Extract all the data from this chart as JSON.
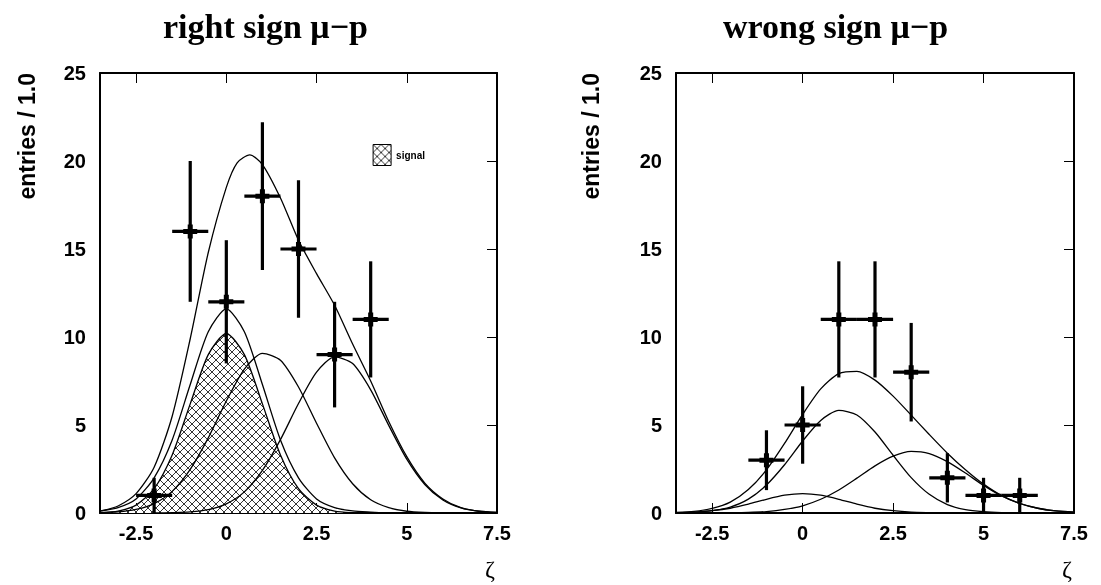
{
  "chart_data": [
    {
      "type": "line",
      "title": "right sign μ−p",
      "xlabel": "ζ",
      "ylabel": "entries / 1.0",
      "xlim": [
        -3.5,
        7.5
      ],
      "xticks": [
        -2.5,
        0,
        2.5,
        5,
        7.5
      ],
      "ylim": [
        0,
        25
      ],
      "yticks": [
        0,
        5,
        10,
        15,
        20,
        25
      ],
      "grid": false,
      "legend": "top right",
      "marker": "none",
      "line_style": "solid",
      "series": [
        {
          "type": "area",
          "name": "signal",
          "color": "#000000",
          "x": [
            -3.5,
            -3,
            -2.5,
            -2,
            -1.5,
            -1,
            -0.5,
            0,
            0.5,
            1,
            1.5,
            2,
            2.5,
            3,
            3.5,
            4
          ],
          "values": [
            0.02,
            0.11,
            0.45,
            1.38,
            3.3,
            6.2,
            9.0,
            10.2,
            9.0,
            6.2,
            3.3,
            1.38,
            0.45,
            0.11,
            0.02,
            0
          ]
        },
        {
          "type": "line",
          "color": "#000000",
          "x": [
            -3.5,
            -3,
            -2.5,
            -2,
            -1.5,
            -1,
            -0.5,
            0,
            0.5,
            1,
            1.5,
            2,
            2.5,
            3,
            3.5,
            4,
            4.5
          ],
          "values": [
            0.12,
            0.31,
            0.8,
            2.0,
            4.15,
            7.3,
            10.3,
            11.6,
            10.3,
            7.3,
            4.15,
            2.0,
            0.8,
            0.31,
            0.12,
            0.05,
            0
          ]
        },
        {
          "type": "line",
          "color": "#000000",
          "x": [
            -3.5,
            -3,
            -2.5,
            -2,
            -1.5,
            -1,
            -0.5,
            0,
            0.5,
            1,
            1.5,
            2,
            2.5,
            3,
            3.5,
            4,
            4.5,
            5,
            5.5,
            6
          ],
          "values": [
            0.02,
            0.06,
            0.2,
            0.53,
            1.23,
            2.48,
            4.27,
            6.36,
            8.18,
            9.07,
            8.68,
            7.16,
            5.1,
            3.13,
            1.66,
            0.75,
            0.3,
            0.1,
            0.03,
            0.01
          ]
        },
        {
          "type": "line",
          "color": "#000000",
          "x": [
            -2,
            -1.5,
            -1,
            -0.5,
            0,
            0.5,
            1,
            1.5,
            2,
            2.5,
            3,
            3.5,
            4,
            4.5,
            5,
            5.5,
            6,
            6.5,
            7,
            7.5
          ],
          "values": [
            0,
            0.02,
            0.06,
            0.19,
            0.52,
            1.2,
            2.42,
            4.17,
            6.22,
            8.0,
            8.87,
            8.49,
            7.0,
            4.98,
            3.06,
            1.62,
            0.74,
            0.29,
            0.1,
            0.03
          ]
        },
        {
          "type": "line",
          "color": "#000000",
          "x": [
            -3.5,
            -3,
            -2.5,
            -2,
            -1.5,
            -1,
            -0.5,
            0,
            0.3,
            0.65,
            1,
            1.5,
            2,
            2.5,
            3,
            3.5,
            4,
            4.5,
            5,
            5.5,
            6,
            6.5,
            7,
            7.5
          ],
          "values": [
            0.1,
            0.4,
            1.1,
            2.6,
            5.5,
            9.9,
            14.8,
            18.5,
            19.9,
            20.35,
            19.8,
            17.9,
            15.5,
            13.6,
            11.8,
            9.6,
            7.5,
            5.2,
            3.2,
            1.7,
            0.8,
            0.3,
            0.1,
            0.03
          ]
        },
        {
          "type": "scatter",
          "marker": "cross",
          "color": "#000000",
          "x": [
            -2,
            -1,
            0,
            1,
            2,
            3,
            4
          ],
          "values": [
            1,
            16,
            12,
            18,
            15,
            9,
            11
          ],
          "errors": [
            1,
            4,
            3.5,
            4.2,
            3.9,
            3,
            3.3
          ],
          "xerrors": [
            0.5,
            0.5,
            0.5,
            0.5,
            0.5,
            0.5,
            0.5
          ]
        }
      ]
    },
    {
      "type": "line",
      "title": "wrong sign μ−p",
      "xlabel": "ζ",
      "ylabel": "entries / 1.0",
      "xlim": [
        -3.5,
        7.5
      ],
      "xticks": [
        -2.5,
        0,
        2.5,
        5,
        7.5
      ],
      "ylim": [
        0,
        25
      ],
      "yticks": [
        0,
        5,
        10,
        15,
        20,
        25
      ],
      "grid": false,
      "marker": "none",
      "line_style": "solid",
      "series": [
        {
          "type": "line",
          "color": "#000000",
          "x": [
            -3.5,
            -3,
            -2.5,
            -2,
            -1.5,
            -1,
            -0.5,
            0,
            0.5,
            1,
            1.5,
            2,
            2.5,
            3,
            3.5,
            4,
            4.5
          ],
          "values": [
            0.02,
            0.05,
            0.13,
            0.27,
            0.5,
            0.78,
            1.01,
            1.1,
            1.01,
            0.78,
            0.5,
            0.27,
            0.13,
            0.05,
            0.02,
            0,
            0
          ]
        },
        {
          "type": "line",
          "color": "#000000",
          "x": [
            -3.5,
            -3,
            -2.5,
            -2,
            -1.5,
            -1,
            -0.5,
            0,
            0.5,
            1,
            1.5,
            2,
            2.5,
            3,
            3.5,
            4,
            4.5,
            5,
            5.5,
            6
          ],
          "values": [
            0.01,
            0.04,
            0.13,
            0.34,
            0.79,
            1.59,
            2.74,
            4.09,
            5.26,
            5.83,
            5.57,
            4.6,
            3.28,
            2.01,
            1.06,
            0.48,
            0.19,
            0.07,
            0.02,
            0.01
          ]
        },
        {
          "type": "line",
          "color": "#000000",
          "x": [
            -2,
            -1.5,
            -1,
            -0.5,
            0,
            0.5,
            1,
            1.5,
            2,
            2.5,
            3,
            3.5,
            4,
            4.5,
            5,
            5.5,
            6,
            6.5,
            7,
            7.5
          ],
          "values": [
            0.01,
            0.03,
            0.08,
            0.2,
            0.41,
            0.78,
            1.31,
            1.98,
            2.68,
            3.23,
            3.5,
            3.38,
            2.92,
            2.27,
            1.57,
            0.97,
            0.54,
            0.27,
            0.12,
            0.05
          ]
        },
        {
          "type": "line",
          "color": "#000000",
          "x": [
            -3.5,
            -3,
            -2.5,
            -2,
            -1.5,
            -1,
            -0.5,
            0,
            0.5,
            1,
            1.5,
            2,
            2.5,
            3,
            3.5,
            4,
            4.5,
            5,
            5.5,
            6,
            6.5,
            7,
            7.5
          ],
          "values": [
            0.03,
            0.09,
            0.26,
            0.62,
            1.33,
            2.45,
            3.95,
            5.6,
            7.05,
            7.92,
            8.05,
            7.55,
            6.64,
            5.56,
            4.46,
            3.4,
            2.46,
            1.64,
            0.99,
            0.55,
            0.27,
            0.12,
            0.05
          ]
        },
        {
          "type": "scatter",
          "marker": "cross",
          "color": "#000000",
          "x": [
            -1,
            0,
            1,
            2,
            3,
            4,
            5,
            6
          ],
          "values": [
            3,
            5,
            11,
            11,
            8,
            2,
            1,
            1
          ],
          "errors": [
            1.7,
            2.2,
            3.3,
            3.3,
            2.8,
            1.4,
            1,
            1
          ],
          "xerrors": [
            0.5,
            0.5,
            0.5,
            0.5,
            0.5,
            0.5,
            0.5,
            0.5
          ]
        }
      ]
    }
  ]
}
